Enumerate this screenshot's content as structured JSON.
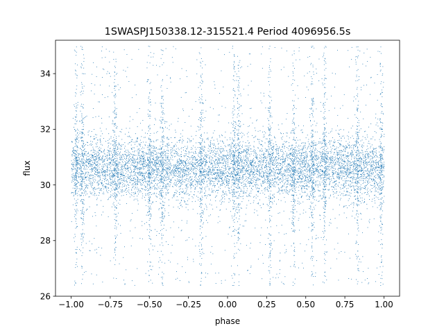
{
  "chart_data": {
    "type": "scatter",
    "title": "1SWASPJ150338.12-315521.4 Period 4096956.5s",
    "xlabel": "phase",
    "ylabel": "flux",
    "xlim": [
      -1.1,
      1.1
    ],
    "ylim": [
      26,
      35.2
    ],
    "xticks": [
      -1.0,
      -0.75,
      -0.5,
      -0.25,
      0.0,
      0.25,
      0.5,
      0.75,
      1.0
    ],
    "xtick_labels": [
      "−1.00",
      "−0.75",
      "−0.50",
      "−0.25",
      "0.00",
      "0.25",
      "0.50",
      "0.75",
      "1.00"
    ],
    "yticks": [
      26,
      28,
      30,
      32,
      34
    ],
    "ytick_labels": [
      "26",
      "28",
      "30",
      "32",
      "34"
    ],
    "grid": false,
    "legend": "none",
    "marker_color": "#1f77b4",
    "series": [
      {
        "x_range": [
          -1.0,
          1.0
        ],
        "y_center": 30.6,
        "core_band": [
          29.6,
          31.8
        ],
        "outlier_range": [
          26.4,
          35.0
        ],
        "dense_phases": [
          -0.97,
          -0.93,
          -0.72,
          -0.5,
          -0.42,
          -0.17,
          0.04,
          0.07,
          0.27,
          0.42,
          0.54,
          0.62,
          0.83,
          0.98
        ]
      }
    ]
  }
}
